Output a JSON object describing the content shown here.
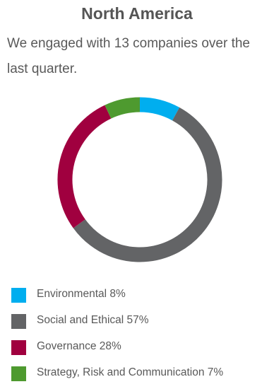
{
  "header": {
    "title": "North America",
    "subtitle": "We engaged with 13 companies over the last quarter."
  },
  "chart_data": {
    "type": "pie",
    "variant": "donut",
    "categories": [
      "Environmental",
      "Social and Ethical",
      "Governance",
      "Strategy, Risk and Communication"
    ],
    "values": [
      8,
      57,
      28,
      7
    ],
    "unit": "%",
    "colors": [
      "#00aeef",
      "#636466",
      "#a0003f",
      "#4e9a2f"
    ],
    "legend_labels": [
      "Environmental 8%",
      "Social and Ethical 57%",
      "Governance 28%",
      "Strategy, Risk and Communication 7%"
    ],
    "legend_placement": "bottom",
    "start_angle": "top, clockwise"
  }
}
